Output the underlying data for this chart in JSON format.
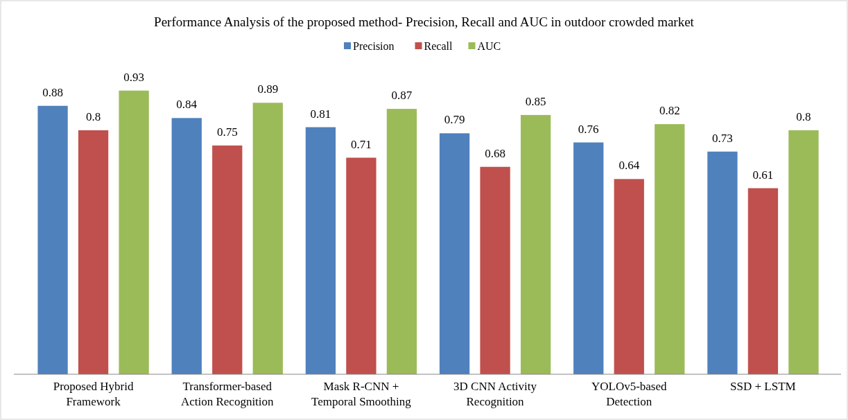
{
  "chart_data": {
    "type": "bar",
    "title": "Performance Analysis of the proposed method- Precision, Recall and AUC in outdoor crowded market",
    "categories": [
      "Proposed Hybrid Framework",
      "Transformer-based Action Recognition",
      "Mask R-CNN + Temporal Smoothing",
      "3D CNN Activity Recognition",
      "YOLOv5-based Detection",
      "SSD + LSTM"
    ],
    "series": [
      {
        "name": "Precision",
        "color": "#4f81bd",
        "values": [
          0.88,
          0.84,
          0.81,
          0.79,
          0.76,
          0.73
        ]
      },
      {
        "name": "Recall",
        "color": "#c0504d",
        "values": [
          0.8,
          0.75,
          0.71,
          0.68,
          0.64,
          0.61
        ]
      },
      {
        "name": "AUC",
        "color": "#9bbb59",
        "values": [
          0.93,
          0.89,
          0.87,
          0.85,
          0.82,
          0.8
        ]
      }
    ],
    "data_labels": true,
    "legend": "top",
    "grid": false
  }
}
